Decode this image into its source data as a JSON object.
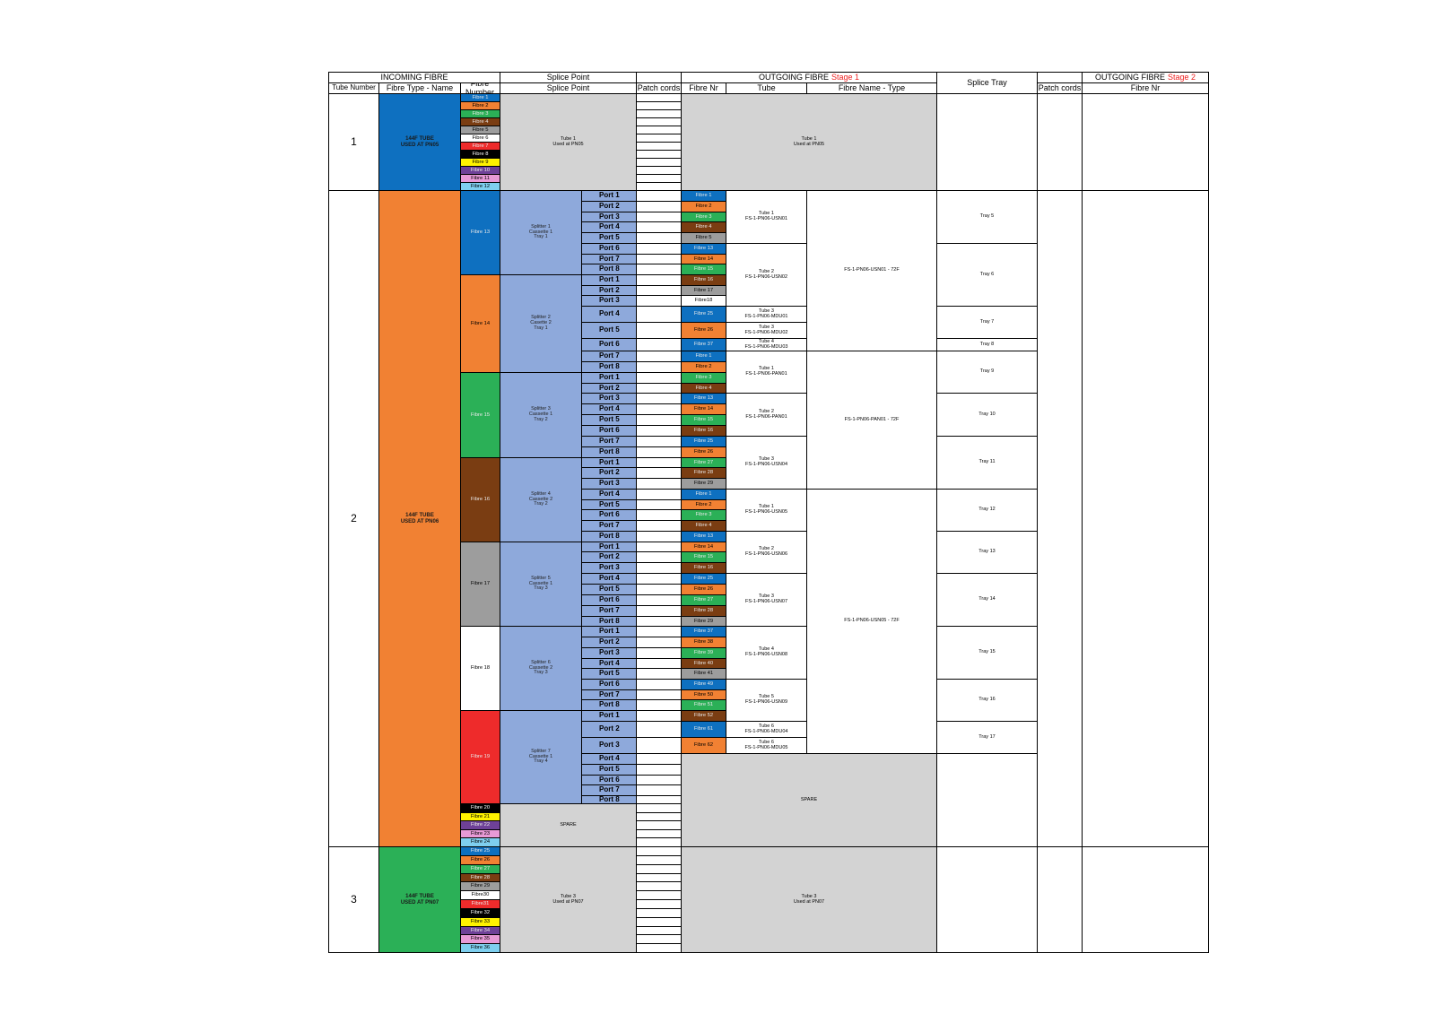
{
  "colors": {
    "blue": "#0e70c0",
    "orange": "#f18133",
    "green": "#2bb057",
    "brown": "#7a3d12",
    "grey": "#9d9d9d",
    "white": "#ffffff",
    "red": "#ee2b2b",
    "black": "#000000",
    "yellow": "#fff200",
    "purple": "#6e4197",
    "pink": "#e79ad6",
    "aqua": "#7ecfef",
    "splitter": "#8ea9db",
    "greyfill": "#d3d3d3"
  },
  "headers": {
    "incoming_fibre": "INCOMING FIBRE",
    "splice_point": "Splice Point",
    "outgoing_fibre": "OUTGOING FIBRE",
    "stage1": "Stage 1",
    "stage2": "Stage 2",
    "splice_tray": "Splice Tray",
    "tube_number": "Tube Number",
    "fibre_type_name": "Fibre Type - Name",
    "fibre_number": "Fibre Number",
    "splice_point_sub": "Splice Point",
    "patch_cords": "Patch cords",
    "fibre_nr": "Fibre Nr",
    "tube": "Tube",
    "fibre_name_type": "Fibre Name - Type",
    "patch_cords2": "Patch cords",
    "fibre_nr2": "Fibre Nr"
  },
  "tubes": [
    {
      "number": "1",
      "name": "144F TUBE\nUSED AT PN05",
      "color": "blue"
    },
    {
      "number": "2",
      "name": "144F TUBE\nUSED AT PN06",
      "color": "orange"
    },
    {
      "number": "3",
      "name": "144F TUBE\nUSED AT PN07",
      "color": "green"
    }
  ],
  "incoming_fibres_tube1": [
    {
      "label": "Fibre 1",
      "color": "blue"
    },
    {
      "label": "Fibre 2",
      "color": "orange"
    },
    {
      "label": "Fibre 3",
      "color": "green"
    },
    {
      "label": "Fibre 4",
      "color": "brown"
    },
    {
      "label": "Fibre 5",
      "color": "grey"
    },
    {
      "label": "Fibre 6",
      "color": "white"
    },
    {
      "label": "Fibre 7",
      "color": "red"
    },
    {
      "label": "Fibre 8",
      "color": "black"
    },
    {
      "label": "Fibre 9",
      "color": "yellow"
    },
    {
      "label": "Fibre 10",
      "color": "purple"
    },
    {
      "label": "Fibre 11",
      "color": "pink"
    },
    {
      "label": "Fibre 12",
      "color": "aqua"
    }
  ],
  "incoming_fibres_tube2": [
    {
      "label": "Fibre 13",
      "color": "blue"
    },
    {
      "label": "Fibre 14",
      "color": "orange"
    },
    {
      "label": "Fibre 15",
      "color": "green"
    },
    {
      "label": "Fibre 16",
      "color": "brown"
    },
    {
      "label": "Fibre 17",
      "color": "grey"
    },
    {
      "label": "Fibre 18",
      "color": "white"
    },
    {
      "label": "Fibre 19",
      "color": "red"
    }
  ],
  "incoming_fibres_tube2_spare": [
    {
      "label": "Fibre 20",
      "color": "black"
    },
    {
      "label": "Fibre 21",
      "color": "yellow"
    },
    {
      "label": "Fibre 22",
      "color": "purple"
    },
    {
      "label": "Fibre 23",
      "color": "pink"
    },
    {
      "label": "Fibre 24",
      "color": "aqua"
    }
  ],
  "incoming_fibres_tube3": [
    {
      "label": "Fibre 25",
      "color": "blue"
    },
    {
      "label": "Fibre 26",
      "color": "orange"
    },
    {
      "label": "Fibre 27",
      "color": "green"
    },
    {
      "label": "Fibre 28",
      "color": "brown"
    },
    {
      "label": "Fibre 29",
      "color": "grey"
    },
    {
      "label": "Fibre30",
      "color": "white"
    },
    {
      "label": "Fibre31",
      "color": "red"
    },
    {
      "label": "Fibre 32",
      "color": "black"
    },
    {
      "label": "Fibre 33",
      "color": "yellow"
    },
    {
      "label": "Fibre 34",
      "color": "purple"
    },
    {
      "label": "Fibre 35",
      "color": "pink"
    },
    {
      "label": "Fibre 36",
      "color": "aqua"
    }
  ],
  "splice_tube1": "Tube 1\nUsed at PN05",
  "outgoing_tube1": "Tube 1\nUsed at PN05",
  "splice_tube2_spare": "SPARE",
  "outgoing_tube2_spare": "SPARE",
  "splice_tube3": "Tube 3\nUsed at PN07",
  "outgoing_tube3": "Tube 3\nUsed at PN07",
  "splitters": [
    "Splitter 1\nCassette 1\nTray 1",
    "Splitter 2\nCasette 2\nTray 1",
    "Splitter 3\nCassette 1\nTray 2",
    "Splitter 4\nCassette 2\nTray 2",
    "Splitter 5\nCassette 1\nTray 3",
    "Splitter 6\nCassette 2\nTray 3",
    "Splitter 7\nCassette 1\nTray 4"
  ],
  "port_labels": [
    "Port 1",
    "Port 2",
    "Port 3",
    "Port 4",
    "Port 5",
    "Port 6",
    "Port 7",
    "Port 8"
  ],
  "outgoing_fibres": [
    {
      "label": "Fibre 1",
      "color": "blue"
    },
    {
      "label": "Fibre 2",
      "color": "orange"
    },
    {
      "label": "Fibre 3",
      "color": "green"
    },
    {
      "label": "Fibre 4",
      "color": "brown"
    },
    {
      "label": "Fibre 5",
      "color": "grey"
    },
    {
      "label": "Fibre 13",
      "color": "blue"
    },
    {
      "label": "Fibre 14",
      "color": "orange"
    },
    {
      "label": "Fibre 15",
      "color": "green"
    },
    {
      "label": "Fibre 16",
      "color": "brown"
    },
    {
      "label": "Fibre 17",
      "color": "grey"
    },
    {
      "label": "Fibre18",
      "color": "white"
    },
    {
      "label": "Fibre 25",
      "color": "blue"
    },
    {
      "label": "Fibre 26",
      "color": "orange"
    },
    {
      "label": "Fibre 37",
      "color": "blue"
    },
    {
      "label": "Fibre 1",
      "color": "blue"
    },
    {
      "label": "Fibre 2",
      "color": "orange"
    },
    {
      "label": "Fibre 3",
      "color": "green"
    },
    {
      "label": "Fibre 4",
      "color": "brown"
    },
    {
      "label": "Fibre 13",
      "color": "blue"
    },
    {
      "label": "Fibre 14",
      "color": "orange"
    },
    {
      "label": "Fibre 15",
      "color": "green"
    },
    {
      "label": "Fibre 16",
      "color": "brown"
    },
    {
      "label": "Fibre 25",
      "color": "blue"
    },
    {
      "label": "Fibre 26",
      "color": "orange"
    },
    {
      "label": "Fibre 27",
      "color": "green"
    },
    {
      "label": "Fibre 28",
      "color": "brown"
    },
    {
      "label": "Fibre 29",
      "color": "grey"
    },
    {
      "label": "Fibre 1",
      "color": "blue"
    },
    {
      "label": "Fibre 2",
      "color": "orange"
    },
    {
      "label": "Fibre 3",
      "color": "green"
    },
    {
      "label": "Fibre 4",
      "color": "brown"
    },
    {
      "label": "Fibre 13",
      "color": "blue"
    },
    {
      "label": "Fibre 14",
      "color": "orange"
    },
    {
      "label": "Fibre 15",
      "color": "green"
    },
    {
      "label": "Fibre 16",
      "color": "brown"
    },
    {
      "label": "Fibre 25",
      "color": "blue"
    },
    {
      "label": "Fibre 26",
      "color": "orange"
    },
    {
      "label": "Fibre 27",
      "color": "green"
    },
    {
      "label": "Fibre 28",
      "color": "brown"
    },
    {
      "label": "Fibre 29",
      "color": "grey"
    },
    {
      "label": "Fibre 37",
      "color": "blue"
    },
    {
      "label": "Fibre 38",
      "color": "orange"
    },
    {
      "label": "Fibre 39",
      "color": "green"
    },
    {
      "label": "Fibre 40",
      "color": "brown"
    },
    {
      "label": "Fibre 41",
      "color": "grey"
    },
    {
      "label": "Fibre 49",
      "color": "blue"
    },
    {
      "label": "Fibre 50",
      "color": "orange"
    },
    {
      "label": "Fibre 51",
      "color": "green"
    },
    {
      "label": "Fibre 52",
      "color": "brown"
    },
    {
      "label": "Fibre 61",
      "color": "blue"
    },
    {
      "label": "Fibre 62",
      "color": "orange"
    }
  ],
  "outgoing_tubes": [
    "Tube 1\nFS-1-PN06-USN01",
    "Tube 2\nFS-1-PN06-USN02",
    "Tube 3\nFS-1-PN06-MDU01",
    "Tube 3\nFS-1-PN06-MDU02",
    "Tube 4\nFS-1-PN06-MDU03",
    "Tube 1\nFS-1-PN06-PAN01",
    "Tube 2\nFS-1-PN06-PAN01",
    "Tube 3\nFS-1-PN06-USN04",
    "Tube 1\nFS-1-PN06-USN05",
    "Tube 2\nFS-1-PN06-USN06",
    "Tube 3\nFS-1-PN06-USN07",
    "Tube 4\nFS-1-PN06-USN08",
    "Tube 5\nFS-1-PN06-USN09",
    "Tube 6\nFS-1-PN06-MDU04",
    "Tube 6\nFS-1-PN06-MDU05"
  ],
  "fibre_names": [
    "FS-1-PN06-USN01 - 72F",
    "FS-1-PN06-PAN01 - 72F",
    "FS-1-PN06-USN05 - 72F"
  ],
  "trays": [
    "Tray 5",
    "Tray 6",
    "Tray 7",
    "Tray 8",
    "Tray 9",
    "Tray 10",
    "Tray 11",
    "Tray 12",
    "Tray 13",
    "Tray 14",
    "Tray 15",
    "Tray 16",
    "Tray 17"
  ]
}
